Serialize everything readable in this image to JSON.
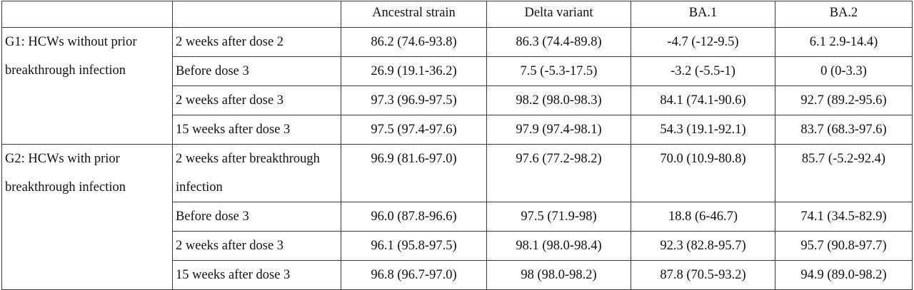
{
  "headers": [
    "",
    "",
    "Ancestral strain",
    "Delta variant",
    "BA.1",
    "BA.2"
  ],
  "groups": [
    {
      "label": "G1: HCWs without prior breakthrough infection",
      "rows": [
        {
          "condition": "2 weeks after dose 2",
          "values": [
            "86.2 (74.6-93.8)",
            "86.3 (74.4-89.8)",
            "-4.7 (-12-9.5)",
            "6.1 2.9-14.4)"
          ]
        },
        {
          "condition": "Before dose 3",
          "values": [
            "26.9 (19.1-36.2)",
            "7.5 (-5.3-17.5)",
            "-3.2 (-5.5-1)",
            "0 (0-3.3)"
          ]
        },
        {
          "condition": "2 weeks after dose 3",
          "values": [
            "97.3 (96.9-97.5)",
            "98.2 (98.0-98.3)",
            "84.1 (74.1-90.6)",
            "92.7 (89.2-95.6)"
          ]
        },
        {
          "condition": "15 weeks after dose 3",
          "values": [
            "97.5 (97.4-97.6)",
            "97.9 (97.4-98.1)",
            "54.3 (19.1-92.1)",
            "83.7 (68.3-97.6)"
          ]
        }
      ]
    },
    {
      "label": "G2: HCWs with prior breakthrough infection",
      "rows": [
        {
          "condition": "2 weeks after breakthrough infection",
          "values": [
            "96.9 (81.6-97.0)",
            "97.6 (77.2-98.2)",
            "70.0 (10.9-80.8)",
            "85.7 (-5.2-92.4)"
          ]
        },
        {
          "condition": "Before dose 3",
          "values": [
            "96.0 (87.8-96.6)",
            "97.5 (71.9-98)",
            "18.8 (6-46.7)",
            "74.1 (34.5-82.9)"
          ]
        },
        {
          "condition": "2 weeks after dose 3",
          "values": [
            "96.1 (95.8-97.5)",
            "98.1 (98.0-98.4)",
            "92.3 (82.8-95.7)",
            "95.7 (90.8-97.7)"
          ]
        },
        {
          "condition": "15 weeks after dose 3",
          "values": [
            "96.8 (96.7-97.0)",
            "98 (98.0-98.2)",
            "87.8 (70.5-93.2)",
            "94.9 (89.0-98.2)"
          ]
        }
      ]
    }
  ]
}
